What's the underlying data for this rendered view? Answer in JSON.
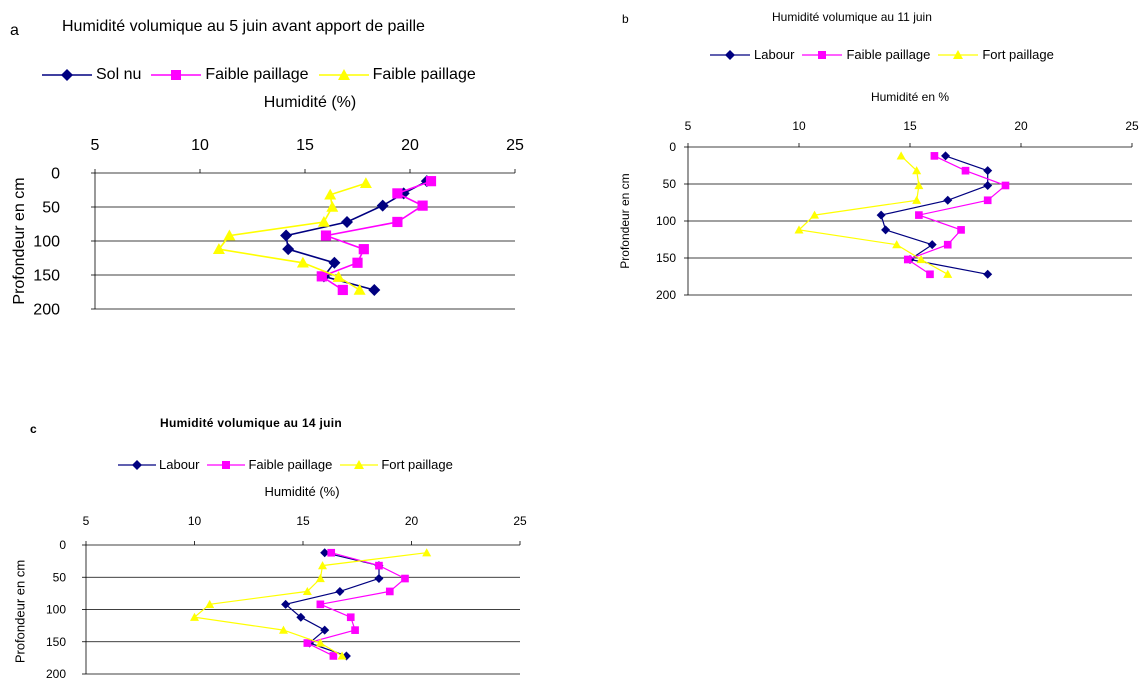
{
  "chart_data": [
    {
      "type": "line",
      "panel_label": "a",
      "title": "Humidité volumique au 5 juin avant apport de paille",
      "xlabel": "Humidité (%)",
      "ylabel": "Profondeur en cm",
      "xlim": [
        5,
        25
      ],
      "ylim": [
        0,
        200
      ],
      "x_ticks": [
        "5",
        "10",
        "15",
        "20",
        "25"
      ],
      "y_ticks": [
        "0",
        "50",
        "100",
        "150",
        "200"
      ],
      "grid": "horizontal",
      "legend_position": "top",
      "series": [
        {
          "name": "Sol nu",
          "color": "#000080",
          "marker": "diamond",
          "x": [
            20.8,
            19.7,
            18.7,
            17.0,
            14.1,
            14.2,
            16.4,
            15.9,
            18.3
          ],
          "y": [
            12,
            30,
            48,
            72,
            92,
            112,
            132,
            152,
            172
          ]
        },
        {
          "name": "Faible paillage",
          "color": "#FF00FF",
          "marker": "square",
          "x": [
            21.0,
            19.4,
            20.6,
            19.4,
            16.0,
            17.8,
            17.5,
            15.8,
            16.8
          ],
          "y": [
            12,
            30,
            48,
            72,
            92,
            112,
            132,
            152,
            172
          ]
        },
        {
          "name": "Faible paillage",
          "color": "#FFFF00",
          "marker": "triangle",
          "x": [
            17.9,
            16.2,
            16.3,
            15.9,
            11.4,
            10.9,
            14.9,
            16.6,
            17.6
          ],
          "y": [
            15,
            32,
            50,
            72,
            92,
            112,
            132,
            153,
            172
          ]
        }
      ]
    },
    {
      "type": "line",
      "panel_label": "b",
      "title": "Humidité volumique au 11 juin",
      "xlabel": "Humidité en %",
      "ylabel": "Profondeur en cm",
      "xlim": [
        5,
        25
      ],
      "ylim": [
        0,
        200
      ],
      "x_ticks": [
        "5",
        "10",
        "15",
        "20",
        "25"
      ],
      "y_ticks": [
        "0",
        "50",
        "100",
        "150",
        "200"
      ],
      "grid": "horizontal",
      "legend_position": "top",
      "series": [
        {
          "name": "Labour",
          "color": "#000080",
          "marker": "diamond",
          "x": [
            16.6,
            18.5,
            18.5,
            16.7,
            13.7,
            13.9,
            16.0,
            15.0,
            18.5
          ],
          "y": [
            12,
            32,
            52,
            72,
            92,
            112,
            132,
            152,
            172
          ]
        },
        {
          "name": "Faible paillage",
          "color": "#FF00FF",
          "marker": "square",
          "x": [
            16.1,
            17.5,
            19.3,
            18.5,
            15.4,
            17.3,
            16.7,
            14.9,
            15.9
          ],
          "y": [
            12,
            32,
            52,
            72,
            92,
            112,
            132,
            152,
            172
          ]
        },
        {
          "name": "Fort paillage",
          "color": "#FFFF00",
          "marker": "triangle",
          "x": [
            14.6,
            15.3,
            15.4,
            15.3,
            10.7,
            10.0,
            14.4,
            15.5,
            16.7
          ],
          "y": [
            12,
            32,
            52,
            72,
            92,
            112,
            132,
            152,
            172
          ]
        }
      ]
    },
    {
      "type": "line",
      "panel_label": "c",
      "title": "Humidité volumique au 14 juin",
      "xlabel": "Humidité (%)",
      "ylabel": "Profondeur en cm",
      "xlim": [
        5,
        25
      ],
      "ylim": [
        0,
        200
      ],
      "x_ticks": [
        "5",
        "10",
        "15",
        "20",
        "25"
      ],
      "y_ticks": [
        "0",
        "50",
        "100",
        "150",
        "200"
      ],
      "grid": "horizontal",
      "legend_position": "top",
      "series": [
        {
          "name": "Labour",
          "color": "#000080",
          "marker": "diamond",
          "x": [
            16.0,
            18.5,
            18.5,
            16.7,
            14.2,
            14.9,
            16.0,
            15.3,
            17.0
          ],
          "y": [
            12,
            32,
            52,
            72,
            92,
            112,
            132,
            152,
            172
          ]
        },
        {
          "name": "Faible paillage",
          "color": "#FF00FF",
          "marker": "square",
          "x": [
            16.3,
            18.5,
            19.7,
            19.0,
            15.8,
            17.2,
            17.4,
            15.2,
            16.4
          ],
          "y": [
            12,
            32,
            52,
            72,
            92,
            112,
            132,
            152,
            172
          ]
        },
        {
          "name": "Fort paillage",
          "color": "#FFFF00",
          "marker": "triangle",
          "x": [
            20.7,
            15.9,
            15.8,
            15.2,
            10.7,
            10.0,
            14.1,
            15.8,
            16.8
          ],
          "y": [
            12,
            32,
            52,
            72,
            92,
            112,
            132,
            152,
            172
          ]
        }
      ]
    }
  ]
}
